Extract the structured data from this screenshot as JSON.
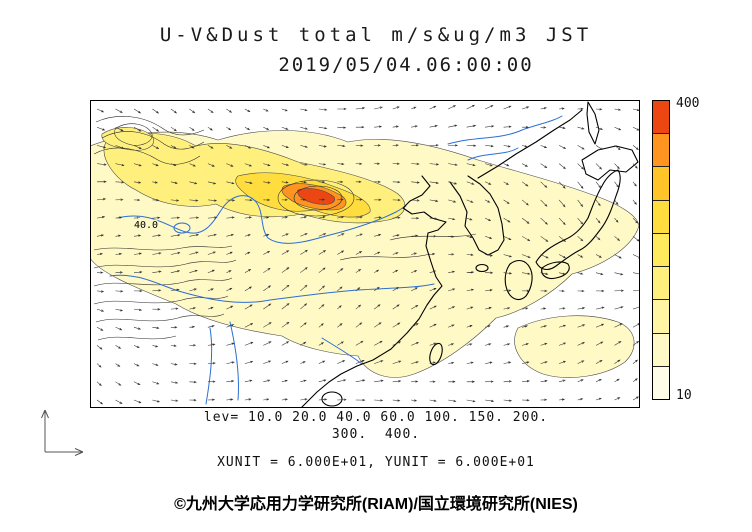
{
  "title": {
    "line1": "U-V&Dust total m/s&ug/m3 JST",
    "line2": "2019/05/04.06:00:00"
  },
  "map": {
    "contour_label": "40.0"
  },
  "colorbar": {
    "top_label": "400",
    "bottom_label": "10",
    "colors_bottom_to_top": [
      "#fffde8",
      "#fff9c6",
      "#fff5a2",
      "#fff07e",
      "#ffe95c",
      "#ffdd3e",
      "#ffc428",
      "#ff9420",
      "#ec4612"
    ]
  },
  "legend": {
    "lev_line1": "lev= 10.0 20.0 40.0 60.0 100. 150. 200.",
    "lev_line2": "300.  400.",
    "units": "XUNIT = 6.000E+01, YUNIT = 6.000E+01"
  },
  "credit": "©九州大学応用力学研究所(RIAM)/国立環境研究所(NIES)",
  "chart_data": {
    "type": "heatmap",
    "subtype": "filled-contour map with wind vector overlay",
    "title": "U-V&Dust total m/s&ug/m3 JST",
    "timestamp": "2019/05/04.06:00:00",
    "variables": "U-V wind (m/s) and total dust concentration (ug/m3)",
    "contour_levels": [
      10.0,
      20.0,
      40.0,
      60.0,
      100,
      150,
      200,
      300,
      400
    ],
    "colorbar_range": [
      10,
      400
    ],
    "xunit": "6.000E+01",
    "yunit": "6.000E+01",
    "map_labels": [
      "40.0"
    ],
    "wind_grid": [
      30,
      17
    ],
    "legend_position": "right"
  }
}
